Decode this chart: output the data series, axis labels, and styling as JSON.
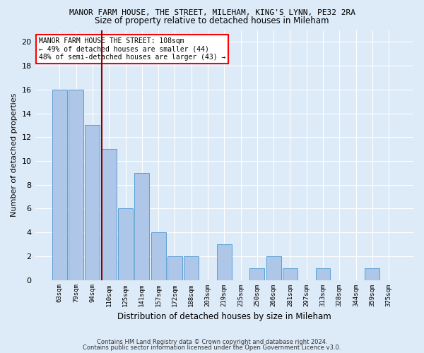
{
  "title": "MANOR FARM HOUSE, THE STREET, MILEHAM, KING'S LYNN, PE32 2RA",
  "subtitle": "Size of property relative to detached houses in Mileham",
  "xlabel": "Distribution of detached houses by size in Mileham",
  "ylabel": "Number of detached properties",
  "categories": [
    "63sqm",
    "79sqm",
    "94sqm",
    "110sqm",
    "125sqm",
    "141sqm",
    "157sqm",
    "172sqm",
    "188sqm",
    "203sqm",
    "219sqm",
    "235sqm",
    "250sqm",
    "266sqm",
    "281sqm",
    "297sqm",
    "313sqm",
    "328sqm",
    "344sqm",
    "359sqm",
    "375sqm"
  ],
  "values": [
    16,
    16,
    13,
    11,
    6,
    9,
    4,
    2,
    2,
    0,
    3,
    0,
    1,
    2,
    1,
    0,
    1,
    0,
    0,
    1,
    0
  ],
  "bar_color": "#aec6e8",
  "bar_edge_color": "#5a9fd4",
  "red_line_index": 3,
  "ylim": [
    0,
    21
  ],
  "yticks": [
    0,
    2,
    4,
    6,
    8,
    10,
    12,
    14,
    16,
    18,
    20
  ],
  "annotation_text": "MANOR FARM HOUSE THE STREET: 108sqm\n← 49% of detached houses are smaller (44)\n48% of semi-detached houses are larger (43) →",
  "footer1": "Contains HM Land Registry data © Crown copyright and database right 2024.",
  "footer2": "Contains public sector information licensed under the Open Government Licence v3.0.",
  "bg_color": "#ddeaf7",
  "plot_bg_color": "#ddeaf7"
}
